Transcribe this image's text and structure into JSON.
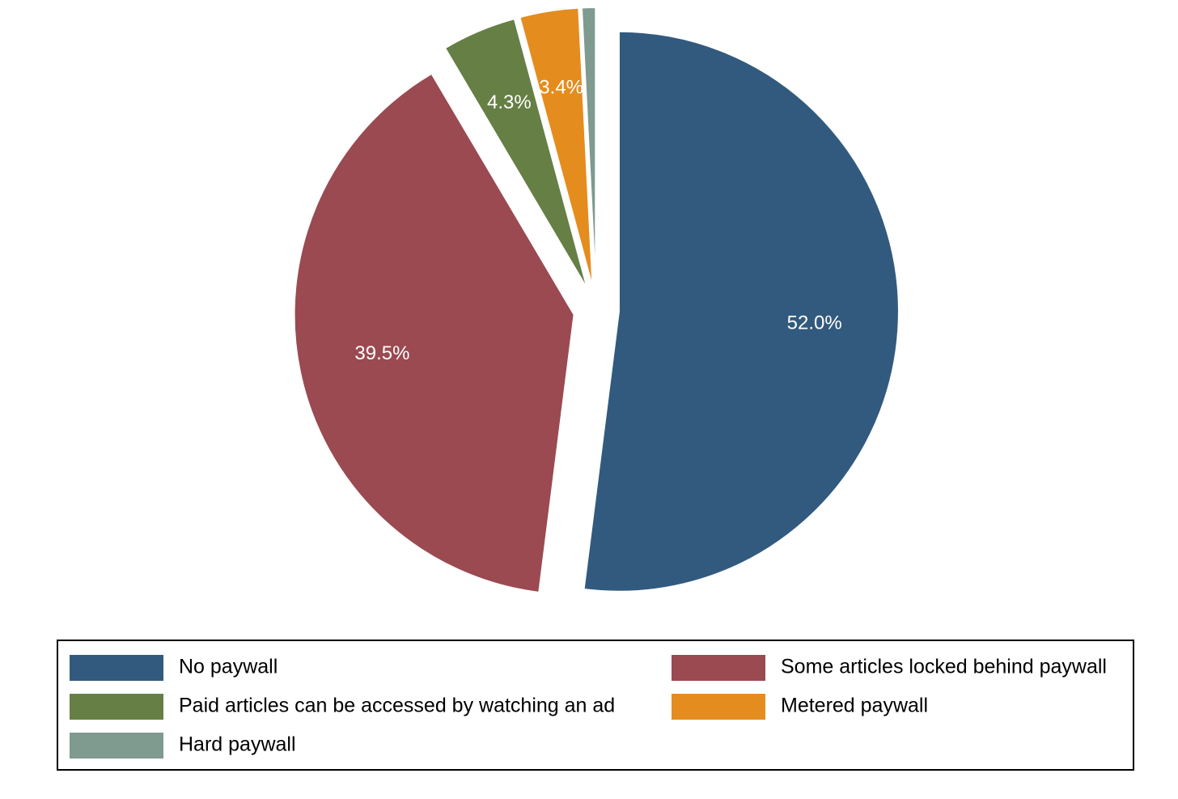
{
  "chart_data": {
    "type": "pie",
    "categories": [
      "No paywall",
      "Some articles locked behind paywall",
      "Paid articles can be accessed by watching an ad",
      "Metered paywall",
      "Hard paywall"
    ],
    "values": [
      52.0,
      39.5,
      4.3,
      3.4,
      0.8
    ],
    "value_labels": [
      "52.0%",
      "39.5%",
      "4.3%",
      "3.4%",
      null
    ],
    "colors": [
      "#325a7e",
      "#9a4a50",
      "#657f45",
      "#e58c1e",
      "#7f9a8f"
    ],
    "legend": "bottom"
  }
}
